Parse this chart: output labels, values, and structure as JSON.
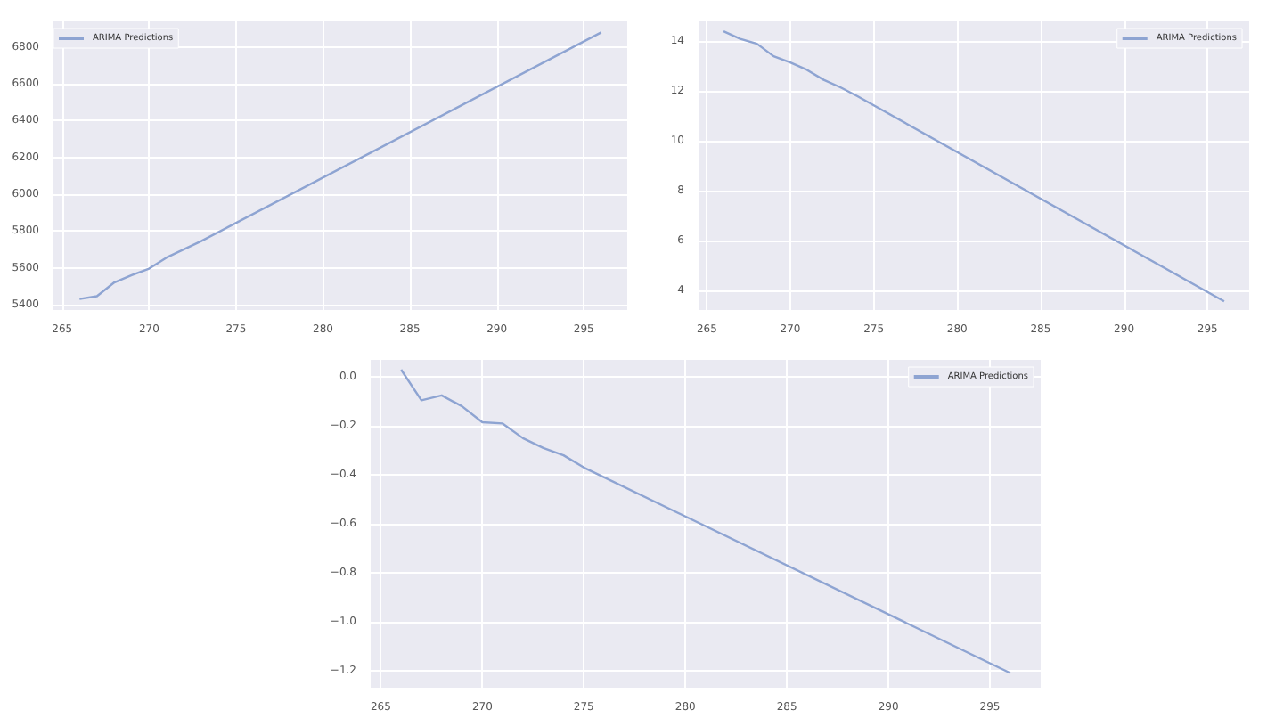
{
  "chart_data": [
    {
      "type": "line",
      "x": [
        266,
        267,
        268,
        269,
        270,
        271,
        272,
        273,
        296
      ],
      "series": [
        {
          "name": "ARIMA Predictions",
          "color": "#8ea4d2",
          "values": [
            5430,
            5445,
            5520,
            5560,
            5595,
            5655,
            5700,
            5745,
            6880
          ]
        }
      ],
      "xlim": [
        264.5,
        297.5
      ],
      "xticks": [
        265,
        270,
        275,
        280,
        285,
        290,
        295
      ],
      "ylim": [
        5370,
        6940
      ],
      "yticks": [
        5400,
        5600,
        5800,
        6000,
        6200,
        6400,
        6600,
        6800
      ],
      "grid": true,
      "legend": "top left"
    },
    {
      "type": "line",
      "x": [
        266,
        267,
        268,
        269,
        270,
        271,
        272,
        273,
        274,
        296
      ],
      "series": [
        {
          "name": "ARIMA Predictions",
          "color": "#8ea4d2",
          "values": [
            14.4,
            14.1,
            13.9,
            13.4,
            13.15,
            12.85,
            12.45,
            12.15,
            11.8,
            3.55
          ]
        }
      ],
      "xlim": [
        264.5,
        297.5
      ],
      "xticks": [
        265,
        270,
        275,
        280,
        285,
        290,
        295
      ],
      "ylim": [
        3.2,
        14.8
      ],
      "yticks": [
        4,
        6,
        8,
        10,
        12,
        14
      ],
      "grid": true,
      "legend": "top right"
    },
    {
      "type": "line",
      "x": [
        266,
        267,
        268,
        269,
        270,
        271,
        272,
        273,
        274,
        275,
        296
      ],
      "series": [
        {
          "name": "ARIMA Predictions",
          "color": "#8ea4d2",
          "values": [
            0.03,
            -0.095,
            -0.075,
            -0.12,
            -0.185,
            -0.19,
            -0.25,
            -0.29,
            -0.32,
            -0.37,
            -1.21
          ]
        }
      ],
      "xlim": [
        264.5,
        297.5
      ],
      "xticks": [
        265,
        270,
        275,
        280,
        285,
        290,
        295
      ],
      "ylim": [
        -1.27,
        0.07
      ],
      "yticks": [
        {
          "value": 0,
          "label": "0.0"
        },
        {
          "value": -0.2,
          "label": "−0.2"
        },
        {
          "value": -0.4,
          "label": "−0.4"
        },
        {
          "value": -0.6,
          "label": "−0.6"
        },
        {
          "value": -0.8,
          "label": "−0.8"
        },
        {
          "value": -1,
          "label": "−1.0"
        },
        {
          "value": -1.2,
          "label": "−1.2"
        }
      ],
      "grid": true,
      "legend": "top right"
    }
  ]
}
